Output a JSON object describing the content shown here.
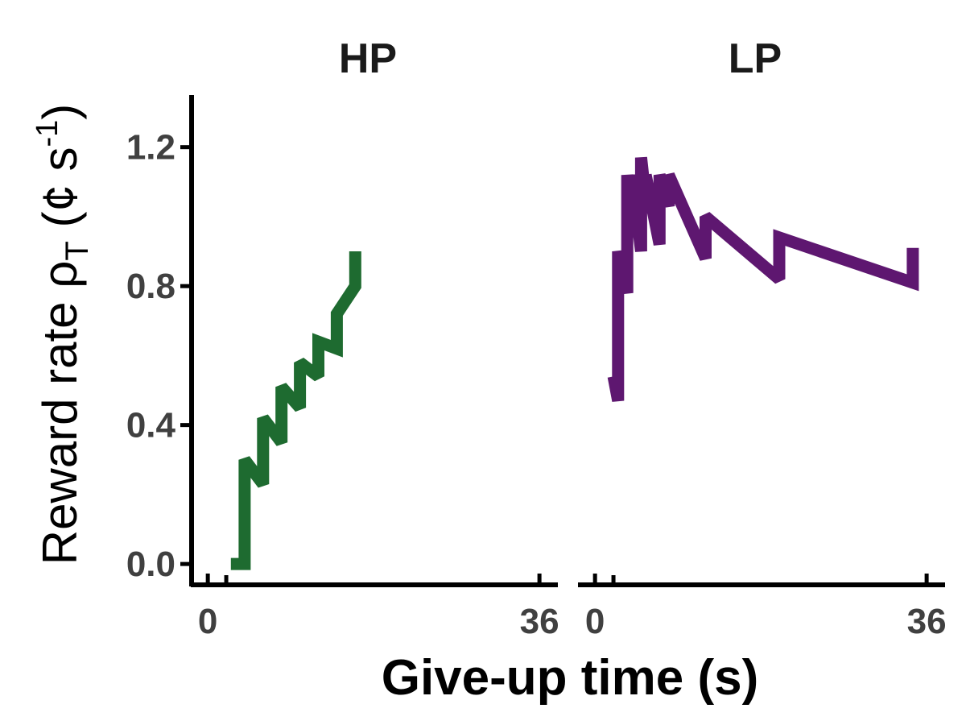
{
  "chart_data": {
    "type": "line",
    "xlabel": "Give-up time (s)",
    "ylabel": "Reward rate ρ",
    "ylabel_subscript": "T",
    "ylabel_units": " (¢ s",
    "ylabel_superscript": "-1",
    "ylabel_close": ")",
    "ylim": [
      -0.06,
      1.35
    ],
    "yticks": [
      0.0,
      0.4,
      0.8,
      1.2
    ],
    "ytick_labels": [
      "0.0",
      "0.4",
      "0.8",
      "1.2"
    ],
    "xlim": [
      -1.5,
      38
    ],
    "xtick_labels": [
      "0",
      "36"
    ],
    "xticks": [
      0,
      36
    ],
    "minor_xticks": [
      2
    ],
    "panels": [
      {
        "title": "HP",
        "color": "#1e6b30",
        "x": [
          2.5,
          4,
          4,
          6,
          6,
          8,
          8,
          10,
          10,
          12,
          12,
          14,
          14,
          16,
          16
        ],
        "y": [
          0.0,
          0.0,
          0.3,
          0.23,
          0.42,
          0.35,
          0.51,
          0.45,
          0.58,
          0.54,
          0.64,
          0.62,
          0.72,
          0.8,
          0.9
        ]
      },
      {
        "title": "LP",
        "color": "#5e1770",
        "x": [
          2,
          2.5,
          2.5,
          3.5,
          3.5,
          4,
          4,
          5,
          5,
          5.5,
          5.5,
          7,
          7,
          8,
          8,
          12,
          12,
          20,
          20,
          34.5,
          34.5
        ],
        "y": [
          0.54,
          0.47,
          0.9,
          0.78,
          1.12,
          1.0,
          1.12,
          0.9,
          1.17,
          1.05,
          1.12,
          0.92,
          1.12,
          1.03,
          1.12,
          0.88,
          1.0,
          0.82,
          0.94,
          0.81,
          0.91
        ]
      }
    ]
  }
}
